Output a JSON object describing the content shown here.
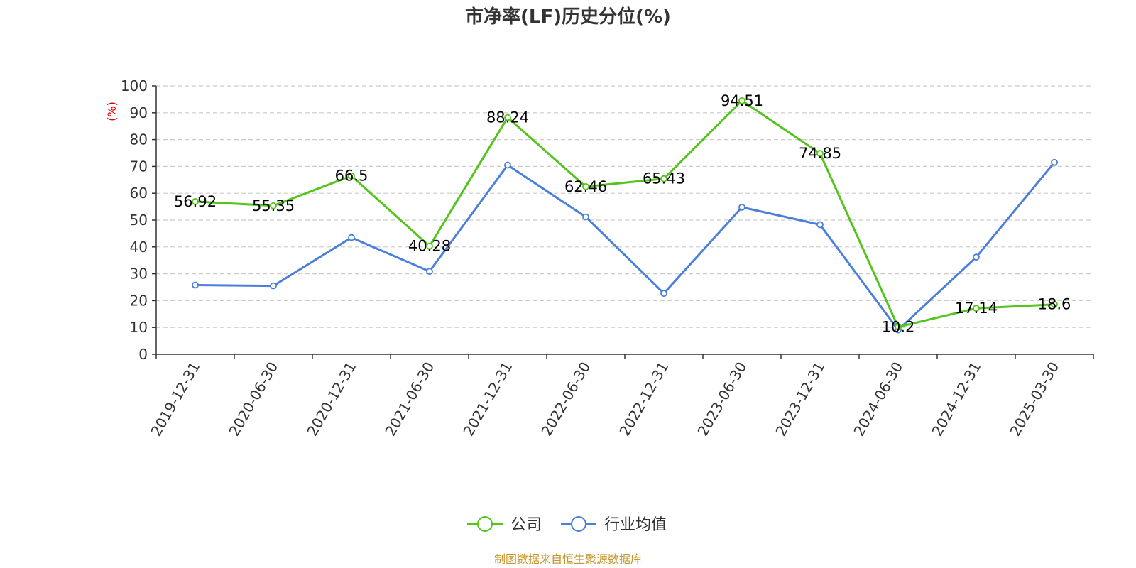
{
  "chart_data": {
    "type": "line",
    "title": "市净率(LF)历史分位(%)",
    "ylabel": "(%)",
    "ylim": [
      0,
      100
    ],
    "yticks": [
      0,
      10,
      20,
      30,
      40,
      50,
      60,
      70,
      80,
      90,
      100
    ],
    "grid": true,
    "legend_position": "bottom-center",
    "categories": [
      "2019-12-31",
      "2020-06-30",
      "2020-12-31",
      "2021-06-30",
      "2021-12-31",
      "2022-06-30",
      "2022-12-31",
      "2023-06-30",
      "2023-12-31",
      "2024-06-30",
      "2024-12-31",
      "2025-03-30"
    ],
    "series": [
      {
        "name": "公司",
        "color": "#52c41a",
        "values": [
          56.92,
          55.35,
          66.5,
          40.28,
          88.24,
          62.46,
          65.43,
          94.51,
          74.85,
          10.2,
          17.14,
          18.6
        ],
        "labels": [
          "56.92",
          "55.35",
          "66.5",
          "40.28",
          "88.24",
          "62.46",
          "65.43",
          "94.51",
          "74.85",
          "10.2",
          "17.14",
          "18.6"
        ]
      },
      {
        "name": "行业均值",
        "color": "#4a7fdc",
        "values": [
          25.8,
          25.5,
          43.5,
          30.9,
          70.5,
          51.2,
          22.7,
          54.8,
          48.3,
          9.1,
          36.2,
          71.5
        ]
      }
    ],
    "source": "制图数据来自恒生聚源数据库",
    "ylabel_color": "#e00000",
    "source_color": "#c8962d"
  }
}
